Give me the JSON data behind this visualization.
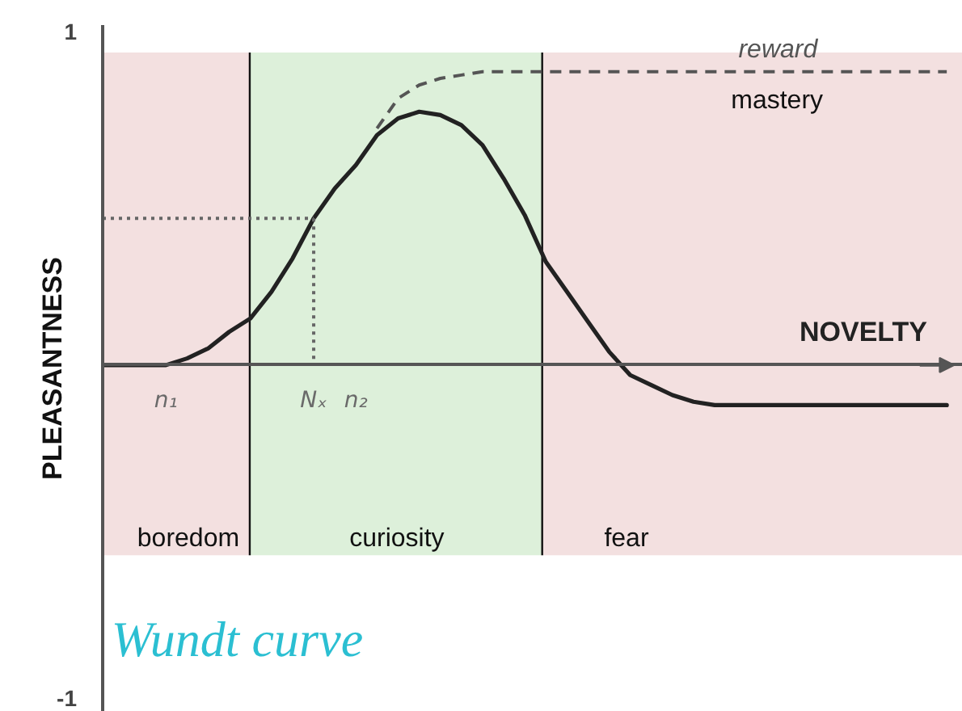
{
  "chart_data": {
    "type": "line",
    "title": "Wundt curve",
    "xlabel": "NOVELTY",
    "ylabel": "PLEASANTNESS",
    "categories": [
      null,
      null,
      null,
      "n₁",
      null,
      null,
      null,
      null,
      null,
      null,
      "Nₓ",
      null,
      "n₂",
      null,
      null,
      null,
      null,
      null,
      null,
      null,
      null,
      null,
      null,
      null,
      null,
      null,
      null,
      null,
      null,
      null,
      null,
      null,
      null,
      null,
      null,
      null,
      null,
      null,
      null,
      null,
      null
    ],
    "ylim": [
      -1.04,
      1.02
    ],
    "yticks": [
      -1,
      1
    ],
    "series": [
      {
        "color": "#222222",
        "line_style": "solid",
        "values": [
          0,
          0,
          0,
          0,
          0.02,
          0.05,
          0.1,
          0.14,
          0.22,
          0.32,
          0.44,
          0.53,
          0.6,
          0.69,
          0.74,
          0.76,
          0.75,
          0.72,
          0.66,
          0.56,
          0.45,
          0.31,
          0.22,
          0.13,
          0.04,
          -0.03,
          -0.06,
          -0.09,
          -0.11,
          -0.12,
          -0.12,
          -0.12,
          -0.12,
          -0.12,
          -0.12,
          -0.12,
          -0.12,
          -0.12,
          -0.12,
          -0.12,
          -0.12
        ]
      },
      {
        "name": "reward",
        "color": "#555555",
        "line_style": "dashed",
        "values": [
          null,
          null,
          null,
          null,
          null,
          null,
          null,
          null,
          null,
          null,
          null,
          null,
          null,
          0.71,
          0.8,
          0.84,
          0.86,
          0.87,
          0.88,
          0.88,
          0.88,
          0.88,
          0.88,
          0.88,
          0.88,
          0.88,
          0.88,
          0.88,
          0.88,
          0.88,
          0.88,
          0.88,
          0.88,
          0.88,
          0.88,
          0.88,
          0.88,
          0.88,
          0.88,
          0.88,
          0.88
        ]
      },
      {
        "color": "#666666",
        "line_style": "dotted",
        "values": [
          0.44,
          0.44,
          0.44,
          0.44,
          0.44,
          0.44,
          0.44,
          0.44,
          0.44,
          0.44,
          0.44,
          null,
          null,
          null,
          null,
          null,
          null,
          null,
          null,
          null,
          null,
          null,
          null,
          null,
          null,
          null,
          null,
          null,
          null,
          null,
          null,
          null,
          null,
          null,
          null,
          null,
          null,
          null,
          null,
          null,
          null
        ]
      },
      {
        "color": "#666666",
        "line_style": "dotted",
        "x": [
          "Nₓ",
          "Nₓ"
        ],
        "values": [
          0.44,
          0
        ]
      }
    ],
    "annotations": [
      "mastery",
      "boredom",
      "curiosity",
      "fear"
    ]
  }
}
